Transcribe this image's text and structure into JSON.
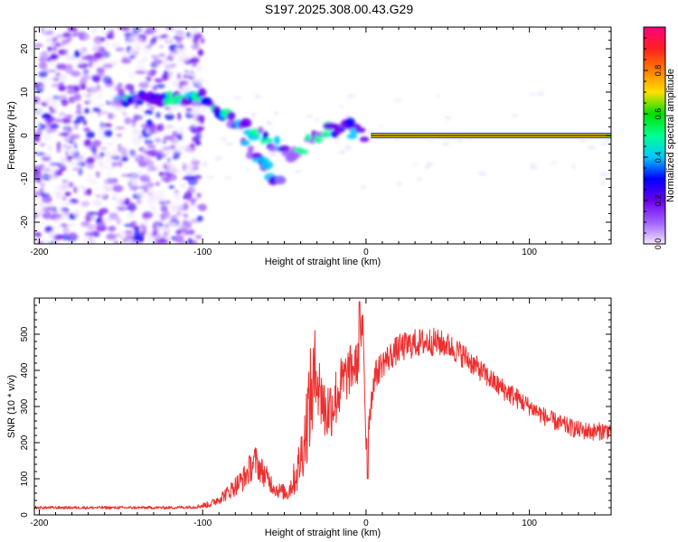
{
  "title": "S197.2025.308.00.43.G29",
  "colors": {
    "axis": "#000000",
    "snr_line": "#ee3030",
    "background": "#ffffff"
  },
  "chart_data": [
    {
      "type": "heatmap",
      "id": "spectrogram",
      "xlabel": "Height of straight line (km)",
      "ylabel": "Frequency (Hz)",
      "xlim": [
        -203,
        150
      ],
      "ylim": [
        -25,
        25
      ],
      "xticks": [
        -200,
        -100,
        0,
        100
      ],
      "xtick_labels": [
        "-200",
        "-100",
        "0",
        "100"
      ],
      "yticks": [
        -20,
        -10,
        0,
        10,
        20
      ],
      "ytick_labels": [
        "-20",
        "-10",
        "0",
        "10",
        "20"
      ],
      "noise_region_x": [
        -203,
        -100
      ],
      "ridge": [
        [
          -150,
          8
        ],
        [
          -140,
          9
        ],
        [
          -125,
          8
        ],
        [
          -100,
          9
        ],
        [
          -95,
          6
        ],
        [
          -90,
          5
        ],
        [
          -85,
          4
        ],
        [
          -80,
          3
        ],
        [
          -75,
          2
        ],
        [
          -70,
          1
        ],
        [
          -65,
          0
        ],
        [
          -60,
          -1
        ],
        [
          -55,
          -2
        ],
        [
          -50,
          -4
        ],
        [
          -45,
          -5
        ],
        [
          -42,
          -4
        ],
        [
          -38,
          -3
        ],
        [
          -35,
          -1
        ],
        [
          -30,
          0
        ],
        [
          -25,
          1
        ],
        [
          -20,
          1
        ],
        [
          -15,
          2
        ],
        [
          -10,
          3
        ],
        [
          -8,
          1
        ],
        [
          -5,
          1
        ],
        [
          0,
          0
        ],
        [
          5,
          0
        ],
        [
          150,
          0
        ]
      ],
      "branch": [
        [
          -75,
          -2
        ],
        [
          -70,
          -4
        ],
        [
          -65,
          -6
        ],
        [
          -60,
          -8
        ],
        [
          -55,
          -10
        ],
        [
          -50,
          -12
        ]
      ],
      "constant_line": {
        "freq_hz": 0,
        "x_from": 3,
        "x_to": 150
      },
      "colorbar": {
        "label": "Normalized spectral amplitude",
        "range": [
          0,
          1
        ],
        "ticks": [
          0.0,
          0.2,
          0.4,
          0.6,
          0.8
        ],
        "tick_labels": [
          "0.0",
          "0.2",
          "0.4",
          "0.6",
          "0.8"
        ],
        "stops": [
          "#f2e6ff",
          "#a060ff",
          "#6a00ee",
          "#0000ff",
          "#00c8ff",
          "#00ff90",
          "#00e000",
          "#ffe000",
          "#ff8000",
          "#ff2020",
          "#ff0080"
        ]
      }
    },
    {
      "type": "line",
      "id": "snr",
      "xlabel": "Height of straight line (km)",
      "ylabel": "SNR (10 * v/v)",
      "xlim": [
        -203,
        150
      ],
      "ylim": [
        0,
        600
      ],
      "xticks": [
        -200,
        -100,
        0,
        100
      ],
      "xtick_labels": [
        "-200",
        "-100",
        "0",
        "100"
      ],
      "yticks": [
        0,
        100,
        200,
        300,
        400,
        500
      ],
      "ytick_labels": [
        "0",
        "100",
        "200",
        "300",
        "400",
        "500"
      ],
      "series": [
        {
          "name": "SNR",
          "x": [
            -203,
            -180,
            -160,
            -140,
            -120,
            -105,
            -95,
            -85,
            -75,
            -68,
            -62,
            -55,
            -48,
            -42,
            -38,
            -35,
            -30,
            -25,
            -20,
            -15,
            -10,
            -5,
            -2,
            0,
            5,
            10,
            20,
            30,
            40,
            50,
            60,
            70,
            80,
            90,
            100,
            110,
            120,
            130,
            140,
            150
          ],
          "values": [
            20,
            20,
            20,
            20,
            20,
            22,
            30,
            60,
            100,
            150,
            110,
            70,
            60,
            120,
            200,
            300,
            400,
            280,
            310,
            360,
            400,
            420,
            530,
            200,
            380,
            420,
            460,
            475,
            480,
            470,
            440,
            400,
            360,
            330,
            300,
            270,
            250,
            235,
            230,
            235
          ],
          "noise": [
            4,
            4,
            4,
            4,
            4,
            5,
            10,
            20,
            35,
            45,
            35,
            22,
            22,
            60,
            90,
            140,
            150,
            90,
            90,
            80,
            70,
            60,
            40,
            40,
            40,
            40,
            40,
            40,
            40,
            35,
            35,
            30,
            30,
            30,
            25,
            25,
            25,
            25,
            25,
            25
          ]
        }
      ],
      "spikes": [
        [
          -4,
          590
        ],
        [
          -28,
          355
        ],
        [
          -30,
          330
        ],
        [
          1,
          100
        ]
      ]
    }
  ]
}
